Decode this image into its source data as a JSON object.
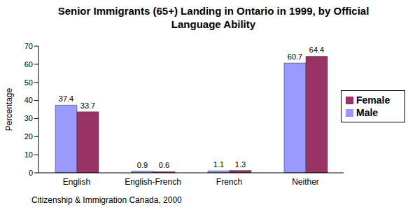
{
  "chart_data": {
    "type": "bar",
    "title": "Senior Immigrants (65+) Landing in Ontario in 1999, by Official Language Ability",
    "y_label": "Percentage",
    "source": "Citizenship & Immigration Canada, 2000",
    "categories": [
      "English",
      "English-French",
      "French",
      "Neither"
    ],
    "series": [
      {
        "name": "Male",
        "color": "#9999ff",
        "values": [
          37.4,
          0.9,
          1.1,
          60.7
        ]
      },
      {
        "name": "Female",
        "color": "#993366",
        "values": [
          33.7,
          0.6,
          1.3,
          64.4
        ]
      }
    ],
    "ylim": [
      0,
      70
    ],
    "yticks": [
      0,
      10,
      20,
      30,
      40,
      50,
      60,
      70
    ],
    "grid": false,
    "legend": "right",
    "data_labels": true
  }
}
